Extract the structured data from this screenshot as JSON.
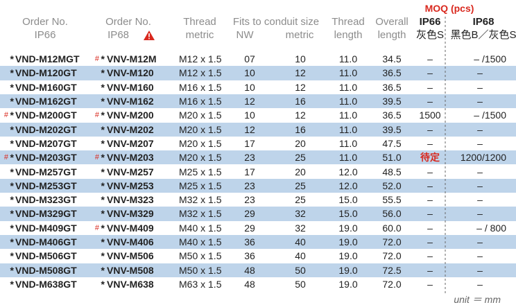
{
  "header": {
    "order_ip66": [
      "Order No.",
      "IP66"
    ],
    "order_ip68": [
      "Order No.",
      "IP68"
    ],
    "thread": [
      "Thread",
      "metric"
    ],
    "fits": "Fits to conduit size",
    "nw": "NW",
    "metric": "metric",
    "thread_length": [
      "Thread",
      "length"
    ],
    "overall_length": [
      "Overall",
      "length"
    ],
    "moq": "MOQ (pcs)",
    "moq_ip66": [
      "IP66",
      "灰色S"
    ],
    "moq_ip68": [
      "IP68",
      "黑色B／灰色S"
    ]
  },
  "table": {
    "rows": [
      {
        "ip66_star": "*",
        "ip66": "VND-M12MGT",
        "ip68_hash": "#",
        "ip68_star": "*",
        "ip68": "VNV-M12M",
        "thread": "M12 x 1.5",
        "nw": "07",
        "metric": "10",
        "thread_length": "11.0",
        "overall_length": "34.5",
        "moq_ip66": "–",
        "moq_ip68": "– /1500"
      },
      {
        "ip66_star": "*",
        "ip66": "VND-M120GT",
        "ip68_star": "*",
        "ip68": "VNV-M120",
        "thread": "M12 x 1.5",
        "nw": "10",
        "metric": "12",
        "thread_length": "11.0",
        "overall_length": "36.5",
        "moq_ip66": "–",
        "moq_ip68": "–"
      },
      {
        "ip66_star": "*",
        "ip66": "VND-M160GT",
        "ip68_star": "*",
        "ip68": "VNV-M160",
        "thread": "M16 x 1.5",
        "nw": "10",
        "metric": "12",
        "thread_length": "11.0",
        "overall_length": "36.5",
        "moq_ip66": "–",
        "moq_ip68": "–"
      },
      {
        "ip66_star": "*",
        "ip66": "VND-M162GT",
        "ip68_star": "*",
        "ip68": "VNV-M162",
        "thread": "M16 x 1.5",
        "nw": "12",
        "metric": "16",
        "thread_length": "11.0",
        "overall_length": "39.5",
        "moq_ip66": "–",
        "moq_ip68": "–"
      },
      {
        "ip66_hash": "#",
        "ip66_star": "*",
        "ip66": "VND-M200GT",
        "ip68_hash": "#",
        "ip68_star": "*",
        "ip68": "VNV-M200",
        "thread": "M20 x 1.5",
        "nw": "10",
        "metric": "12",
        "thread_length": "11.0",
        "overall_length": "36.5",
        "moq_ip66": "1500",
        "moq_ip68": "– /1500"
      },
      {
        "ip66_star": "*",
        "ip66": "VND-M202GT",
        "ip68_star": "*",
        "ip68": "VNV-M202",
        "thread": "M20 x 1.5",
        "nw": "12",
        "metric": "16",
        "thread_length": "11.0",
        "overall_length": "39.5",
        "moq_ip66": "–",
        "moq_ip68": "–"
      },
      {
        "ip66_star": "*",
        "ip66": "VND-M207GT",
        "ip68_star": "*",
        "ip68": "VNV-M207",
        "thread": "M20 x 1.5",
        "nw": "17",
        "metric": "20",
        "thread_length": "11.0",
        "overall_length": "47.5",
        "moq_ip66": "–",
        "moq_ip68": "–"
      },
      {
        "ip66_hash": "#",
        "ip66_star": "*",
        "ip66": "VND-M203GT",
        "ip68_hash": "#",
        "ip68_star": "*",
        "ip68": "VNV-M203",
        "thread": "M20 x 1.5",
        "nw": "23",
        "metric": "25",
        "thread_length": "11.0",
        "overall_length": "51.0",
        "moq_ip66": "待定",
        "moq_ip68": "1200/1200"
      },
      {
        "ip66_star": "*",
        "ip66": "VND-M257GT",
        "ip68_star": "*",
        "ip68": "VNV-M257",
        "thread": "M25 x 1.5",
        "nw": "17",
        "metric": "20",
        "thread_length": "12.0",
        "overall_length": "48.5",
        "moq_ip66": "–",
        "moq_ip68": "–"
      },
      {
        "ip66_star": "*",
        "ip66": "VND-M253GT",
        "ip68_star": "*",
        "ip68": "VNV-M253",
        "thread": "M25 x 1.5",
        "nw": "23",
        "metric": "25",
        "thread_length": "12.0",
        "overall_length": "52.0",
        "moq_ip66": "–",
        "moq_ip68": "–"
      },
      {
        "ip66_star": "*",
        "ip66": "VND-M323GT",
        "ip68_star": "*",
        "ip68": "VNV-M323",
        "thread": "M32 x 1.5",
        "nw": "23",
        "metric": "25",
        "thread_length": "15.0",
        "overall_length": "55.5",
        "moq_ip66": "–",
        "moq_ip68": "–"
      },
      {
        "ip66_star": "*",
        "ip66": "VND-M329GT",
        "ip68_star": "*",
        "ip68": "VNV-M329",
        "thread": "M32 x 1.5",
        "nw": "29",
        "metric": "32",
        "thread_length": "15.0",
        "overall_length": "56.0",
        "moq_ip66": "–",
        "moq_ip68": "–"
      },
      {
        "ip66_star": "*",
        "ip66": "VND-M409GT",
        "ip68_hash": "#",
        "ip68_star": "*",
        "ip68": "VNV-M409",
        "thread": "M40 x 1.5",
        "nw": "29",
        "metric": "32",
        "thread_length": "19.0",
        "overall_length": "60.0",
        "moq_ip66": "–",
        "moq_ip68": "– / 800"
      },
      {
        "ip66_star": "*",
        "ip66": "VND-M406GT",
        "ip68_star": "*",
        "ip68": "VNV-M406",
        "thread": "M40 x 1.5",
        "nw": "36",
        "metric": "40",
        "thread_length": "19.0",
        "overall_length": "72.0",
        "moq_ip66": "–",
        "moq_ip68": "–"
      },
      {
        "ip66_star": "*",
        "ip66": "VND-M506GT",
        "ip68_star": "*",
        "ip68": "VNV-M506",
        "thread": "M50 x 1.5",
        "nw": "36",
        "metric": "40",
        "thread_length": "19.0",
        "overall_length": "72.0",
        "moq_ip66": "–",
        "moq_ip68": "–"
      },
      {
        "ip66_star": "*",
        "ip66": "VND-M508GT",
        "ip68_star": "*",
        "ip68": "VNV-M508",
        "thread": "M50 x 1.5",
        "nw": "48",
        "metric": "50",
        "thread_length": "19.0",
        "overall_length": "72.5",
        "moq_ip66": "–",
        "moq_ip68": "–"
      },
      {
        "ip66_star": "*",
        "ip66": "VND-M638GT",
        "ip68_star": "*",
        "ip68": "VNV-M638",
        "thread": "M63 x 1.5",
        "nw": "48",
        "metric": "50",
        "thread_length": "19.0",
        "overall_length": "72.0",
        "moq_ip66": "–",
        "moq_ip68": "–"
      }
    ]
  },
  "footer": "unit ＝ mm"
}
